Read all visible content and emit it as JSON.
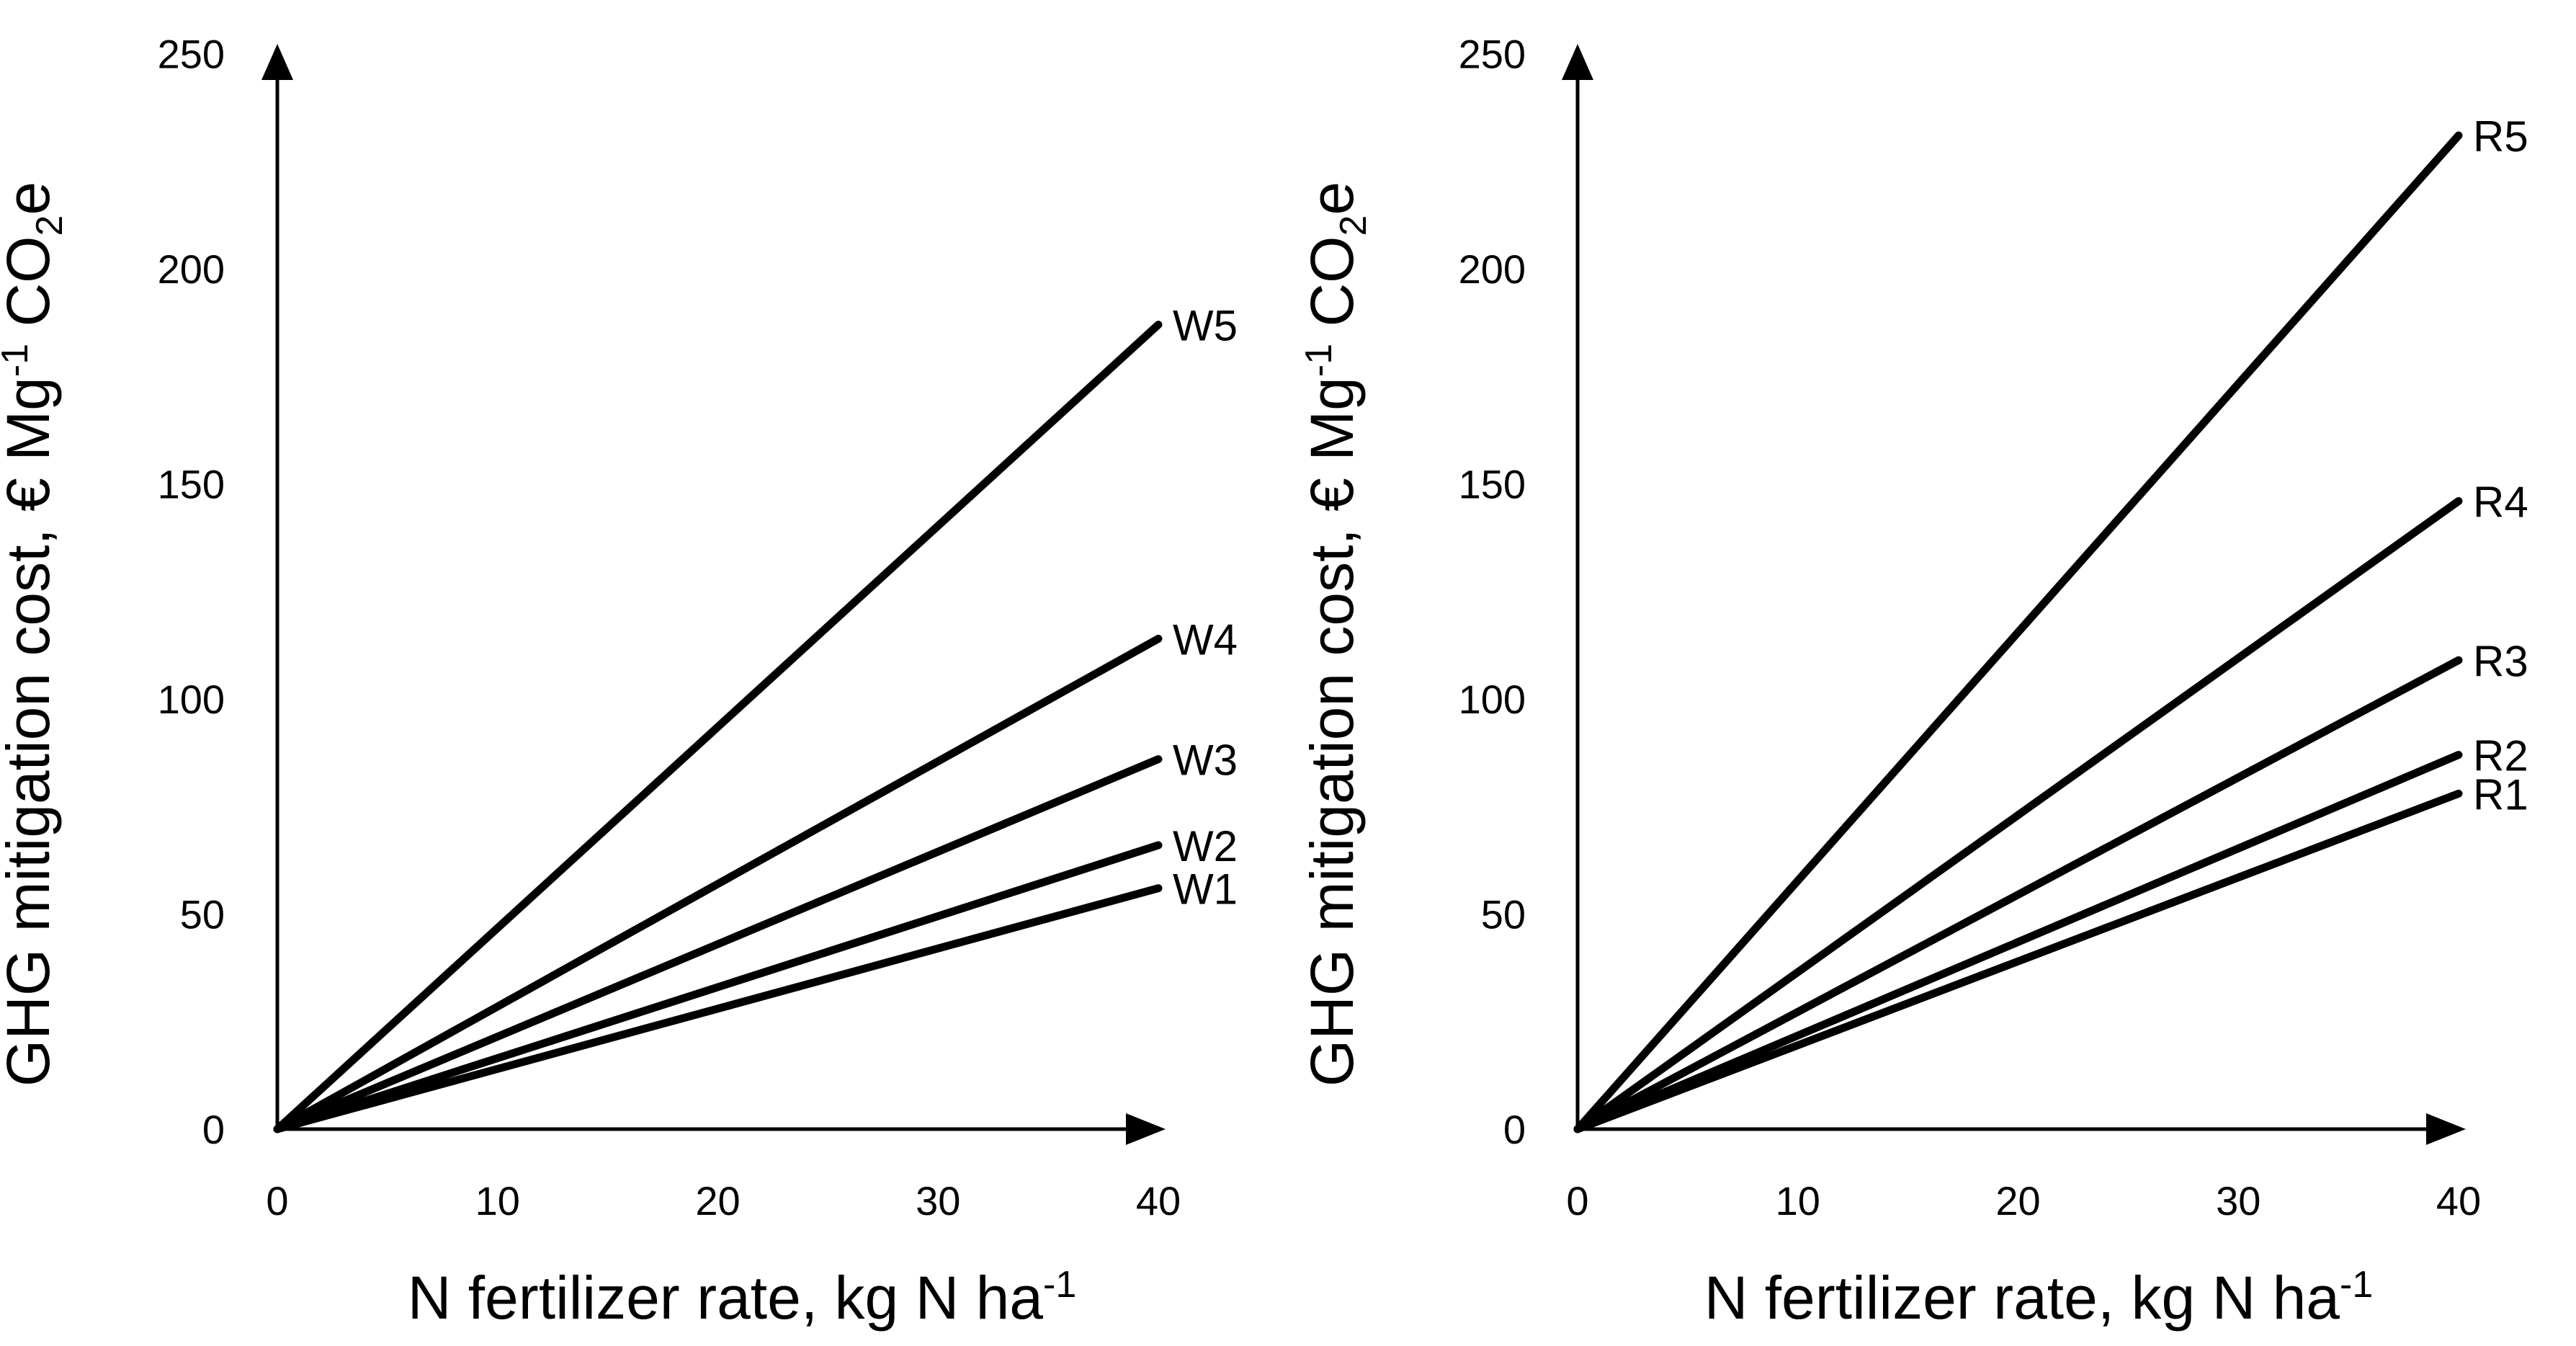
{
  "colors": {
    "line": "#000000",
    "background": "#ffffff"
  },
  "chart_data": [
    {
      "type": "line",
      "panel": "left",
      "xlabel": "N fertilizer rate, kg N ha",
      "xlabel_sup": "-1",
      "ylabel_pre": "GHG mitigation cost, € Mg",
      "ylabel_sup": "-1",
      "ylabel_mid": " CO",
      "ylabel_sub": "2",
      "ylabel_post": "e",
      "xlim": [
        0,
        40
      ],
      "ylim": [
        0,
        250
      ],
      "xticks": [
        "0",
        "10",
        "20",
        "30",
        "40"
      ],
      "yticks": [
        "0",
        "50",
        "100",
        "150",
        "200",
        "250"
      ],
      "series": [
        {
          "name": "W1",
          "x": [
            0,
            40
          ],
          "y": [
            0,
            56
          ]
        },
        {
          "name": "W2",
          "x": [
            0,
            40
          ],
          "y": [
            0,
            66
          ]
        },
        {
          "name": "W3",
          "x": [
            0,
            40
          ],
          "y": [
            0,
            86
          ]
        },
        {
          "name": "W4",
          "x": [
            0,
            40
          ],
          "y": [
            0,
            114
          ]
        },
        {
          "name": "W5",
          "x": [
            0,
            40
          ],
          "y": [
            0,
            187
          ]
        }
      ]
    },
    {
      "type": "line",
      "panel": "right",
      "xlabel": "N fertilizer rate, kg N ha",
      "xlabel_sup": "-1",
      "ylabel_pre": "GHG mitigation cost, € Mg",
      "ylabel_sup": "-1",
      "ylabel_mid": " CO",
      "ylabel_sub": "2",
      "ylabel_post": "e",
      "xlim": [
        0,
        40
      ],
      "ylim": [
        0,
        250
      ],
      "xticks": [
        "0",
        "10",
        "20",
        "30",
        "40"
      ],
      "yticks": [
        "0",
        "50",
        "100",
        "150",
        "200",
        "250"
      ],
      "series": [
        {
          "name": "R1",
          "x": [
            0,
            40
          ],
          "y": [
            0,
            78
          ]
        },
        {
          "name": "R2",
          "x": [
            0,
            40
          ],
          "y": [
            0,
            87
          ]
        },
        {
          "name": "R3",
          "x": [
            0,
            40
          ],
          "y": [
            0,
            109
          ]
        },
        {
          "name": "R4",
          "x": [
            0,
            40
          ],
          "y": [
            0,
            146
          ]
        },
        {
          "name": "R5",
          "x": [
            0,
            40
          ],
          "y": [
            0,
            231
          ]
        }
      ]
    }
  ]
}
